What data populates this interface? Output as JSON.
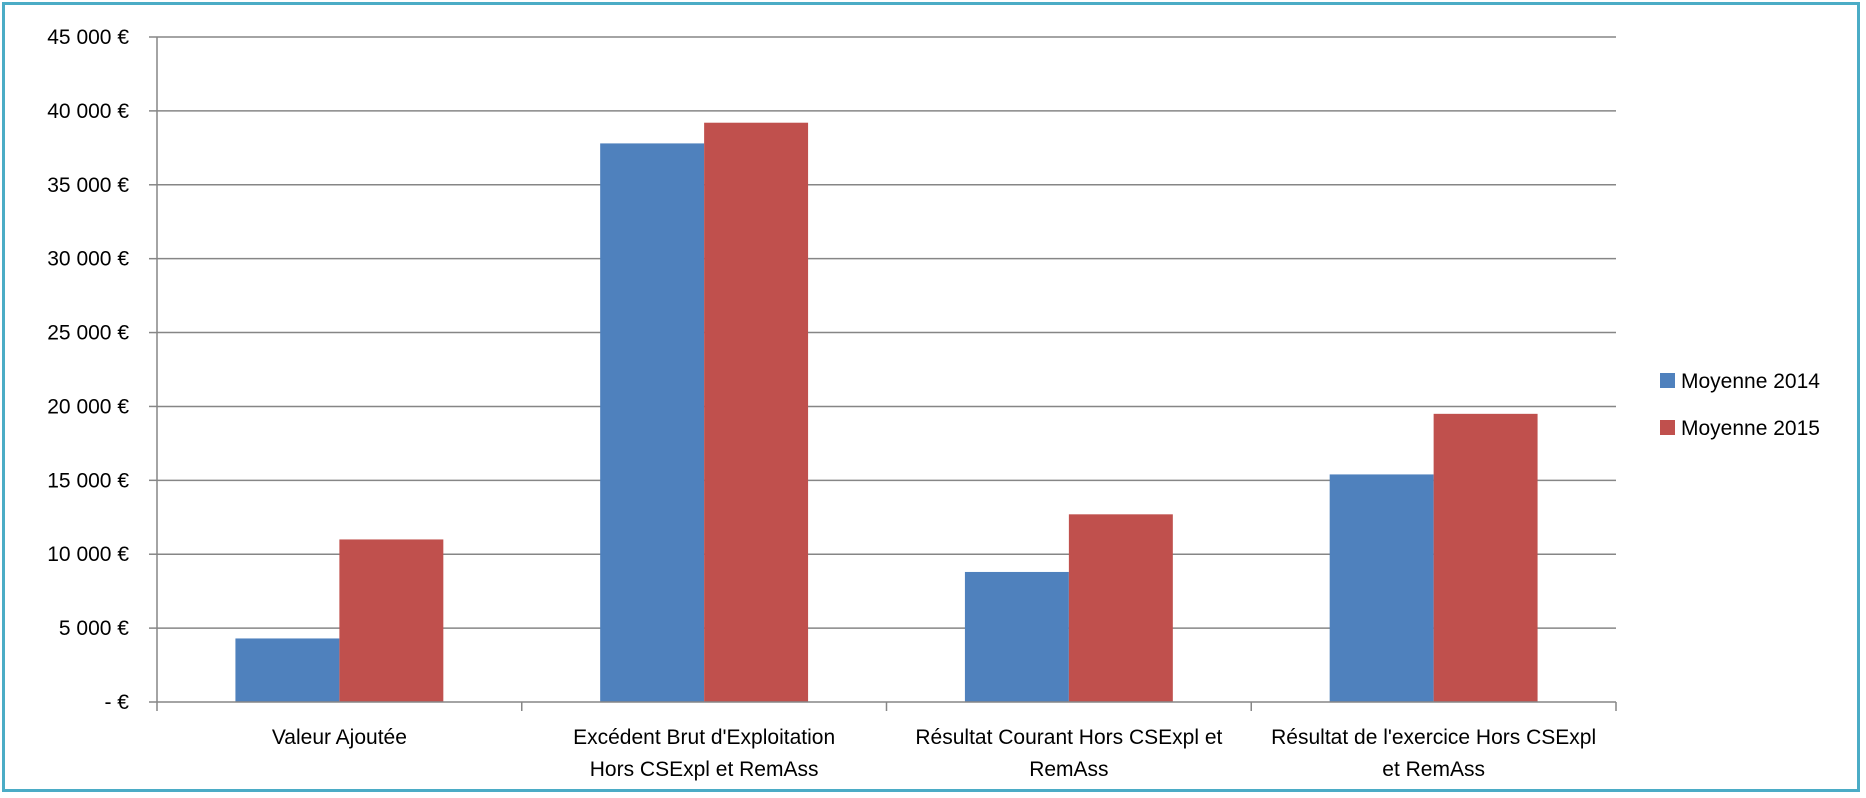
{
  "chart_data": {
    "type": "bar",
    "title": "",
    "xlabel": "",
    "ylabel": "",
    "categories": [
      [
        "Valeur Ajoutée"
      ],
      [
        "Excédent Brut d'Exploitation",
        "Hors CSExpl et RemAss"
      ],
      [
        "Résultat Courant Hors CSExpl et",
        "RemAss"
      ],
      [
        "Résultat de l'exercice Hors CSExpl",
        "et RemAss"
      ]
    ],
    "series": [
      {
        "name": "Moyenne 2014",
        "color": "#4f81bd",
        "values": [
          4300,
          37800,
          8800,
          15400
        ]
      },
      {
        "name": "Moyenne 2015",
        "color": "#c0504d",
        "values": [
          11000,
          39200,
          12700,
          19500
        ]
      }
    ],
    "ylim": [
      0,
      45000
    ],
    "yticks": [
      0,
      5000,
      10000,
      15000,
      20000,
      25000,
      30000,
      35000,
      40000,
      45000
    ],
    "ytick_labels": [
      "-  €",
      "5 000 €",
      "10 000 €",
      "15 000 €",
      "20 000 €",
      "25 000 €",
      "30 000 €",
      "35 000 €",
      "40 000 €",
      "45 000 €"
    ],
    "grid": true,
    "legend_position": "right",
    "border_color": "#4bacc6",
    "gridline_color": "#868686"
  }
}
